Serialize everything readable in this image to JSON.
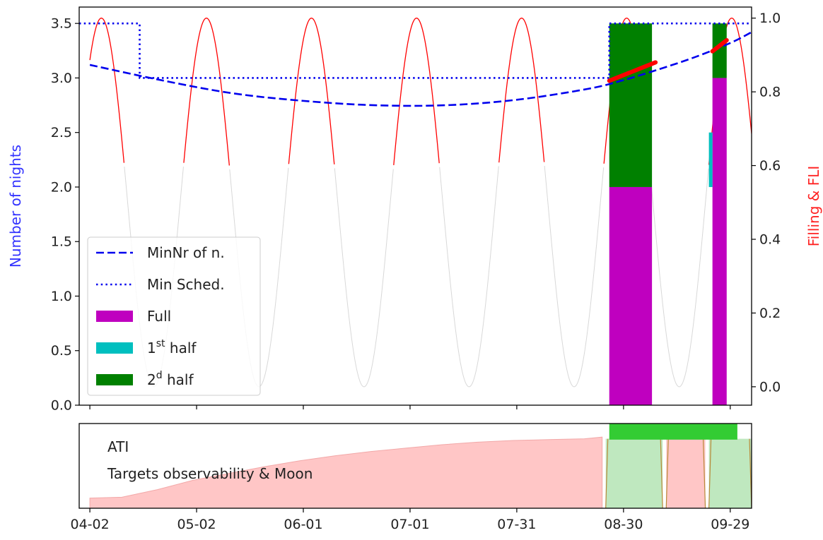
{
  "chart_data": [
    {
      "type": "bar",
      "title": "",
      "xlabel": "",
      "ylabel_left": "Number of nights",
      "ylabel_right": "Filling & FLI",
      "ylabel_left_color": "#3333ff",
      "ylabel_right_color": "#ff2222",
      "x_axis_start": "2023-04-02",
      "x_axis_end": "2023-10-03",
      "xlim": [
        "2023-03-30",
        "2023-10-05"
      ],
      "xtick_dates": [
        "2023-04-02",
        "2023-05-02",
        "2023-06-01",
        "2023-07-01",
        "2023-07-31",
        "2023-08-30",
        "2023-09-29"
      ],
      "xtick_labels": [
        "04-02",
        "05-02",
        "06-01",
        "07-01",
        "07-31",
        "08-30",
        "09-29"
      ],
      "ylim_left": [
        0,
        3.65
      ],
      "yticks_left": [
        "0.0",
        "0.5",
        "1.0",
        "1.5",
        "2.0",
        "2.5",
        "3.0",
        "3.5"
      ],
      "ylim_right": [
        -0.05,
        1.03
      ],
      "yticks_right": [
        "0.0",
        "0.2",
        "0.4",
        "0.6",
        "0.8",
        "1.0"
      ],
      "grid": false,
      "legend_position": "lower-left",
      "legend": [
        {
          "label": "MinNr of n.",
          "style": "dashed",
          "color": "#0000ee"
        },
        {
          "label": "Min Sched.",
          "style": "dotted",
          "color": "#0000ee"
        },
        {
          "label": "Full",
          "style": "patch",
          "color": "#bf00bf"
        },
        {
          "label": "1",
          "sup": "st",
          "suffix": " half",
          "style": "patch",
          "color": "#00bfbf"
        },
        {
          "label": "2",
          "sup": "d",
          "suffix": " half",
          "style": "patch",
          "color": "#008000"
        }
      ],
      "series": [
        {
          "name": "MinNr of n.",
          "kind": "line",
          "axis": "left",
          "style": "dashed",
          "color": "#0000ee",
          "x": [
            "2023-04-02",
            "2023-04-22",
            "2023-05-12",
            "2023-06-01",
            "2023-06-21",
            "2023-07-11",
            "2023-07-31",
            "2023-08-20",
            "2023-08-30",
            "2023-09-09",
            "2023-09-19",
            "2023-09-29",
            "2023-10-05"
          ],
          "y": [
            3.12,
            2.98,
            2.86,
            2.79,
            2.75,
            2.75,
            2.8,
            2.9,
            2.98,
            3.08,
            3.19,
            3.32,
            3.42
          ]
        },
        {
          "name": "Min Sched.",
          "kind": "step",
          "axis": "left",
          "style": "dotted",
          "color": "#0000ee",
          "x": [
            "2023-03-30",
            "2023-04-16",
            "2023-04-16",
            "2023-08-26",
            "2023-08-26",
            "2023-10-05"
          ],
          "y": [
            3.5,
            3.5,
            3.0,
            3.0,
            3.5,
            3.5
          ]
        },
        {
          "name": "Full",
          "kind": "bar",
          "axis": "left",
          "color": "#bf00bf",
          "bars": [
            {
              "x0": "2023-08-26",
              "x1": "2023-09-07",
              "bottom": 0,
              "top": 2.0
            },
            {
              "x0": "2023-09-24",
              "x1": "2023-09-28",
              "bottom": 0,
              "top": 3.0
            }
          ]
        },
        {
          "name": "1st half",
          "kind": "bar",
          "axis": "left",
          "color": "#00bfbf",
          "bars": [
            {
              "x0": "2023-09-23",
              "x1": "2023-09-24",
              "bottom": 2.0,
              "top": 2.5
            }
          ]
        },
        {
          "name": "2d half",
          "kind": "bar",
          "axis": "left",
          "color": "#008000",
          "bars": [
            {
              "x0": "2023-08-26",
              "x1": "2023-09-07",
              "bottom": 2.0,
              "top": 3.5
            },
            {
              "x0": "2023-09-24",
              "x1": "2023-09-28",
              "bottom": 3.0,
              "top": 3.5
            }
          ]
        },
        {
          "name": "FLI",
          "kind": "curve",
          "axis": "right",
          "color_dark": "#ff0000",
          "color_bright": "#d8d8d8",
          "function": "0.5 - 0.5*cos(2*pi*(t - t_new)/29.53)",
          "t_new": "2023-04-20",
          "period_days": 29.53,
          "red_above": 0.6
        },
        {
          "name": "Filling",
          "kind": "segments",
          "axis": "right",
          "color": "#ff0000",
          "segments": [
            {
              "x": [
                "2023-08-26",
                "2023-09-08"
              ],
              "y": [
                0.83,
                0.88
              ]
            },
            {
              "x": [
                "2023-09-24",
                "2023-09-28"
              ],
              "y": [
                0.91,
                0.94
              ]
            }
          ]
        }
      ]
    },
    {
      "type": "area",
      "title": "",
      "xlim": [
        "2023-03-30",
        "2023-10-05"
      ],
      "annotations": [
        "ATI",
        "Targets observability & Moon"
      ],
      "ylim": [
        0,
        1
      ],
      "series": [
        {
          "name": "Targets observability",
          "kind": "area",
          "color": "#ffc6c6",
          "edge": "#f2a8a8",
          "x": [
            "2023-04-02",
            "2023-04-11",
            "2023-04-21",
            "2023-05-01",
            "2023-05-11",
            "2023-05-21",
            "2023-05-31",
            "2023-06-10",
            "2023-06-20",
            "2023-06-30",
            "2023-07-10",
            "2023-07-20",
            "2023-07-30",
            "2023-08-09",
            "2023-08-19",
            "2023-08-24"
          ],
          "y": [
            0.12,
            0.13,
            0.22,
            0.33,
            0.41,
            0.49,
            0.56,
            0.62,
            0.67,
            0.71,
            0.75,
            0.78,
            0.8,
            0.81,
            0.82,
            0.84
          ]
        },
        {
          "name": "Moon",
          "kind": "blocks",
          "blocks": [
            {
              "x0": "2023-08-25",
              "x1": "2023-09-10",
              "top": 0.82,
              "color": "#bfe8bf"
            },
            {
              "x0": "2023-09-11",
              "x1": "2023-09-22",
              "top": 0.82,
              "color": "#ffc6c6"
            },
            {
              "x0": "2023-09-23",
              "x1": "2023-10-05",
              "top": 0.82,
              "color": "#bfe8bf"
            }
          ]
        },
        {
          "name": "ATI",
          "kind": "blocks",
          "blocks": [
            {
              "x0": "2023-08-26",
              "x1": "2023-10-01",
              "bottom": 0.81,
              "top": 1.17,
              "color": "#33cc33"
            }
          ]
        }
      ]
    }
  ]
}
